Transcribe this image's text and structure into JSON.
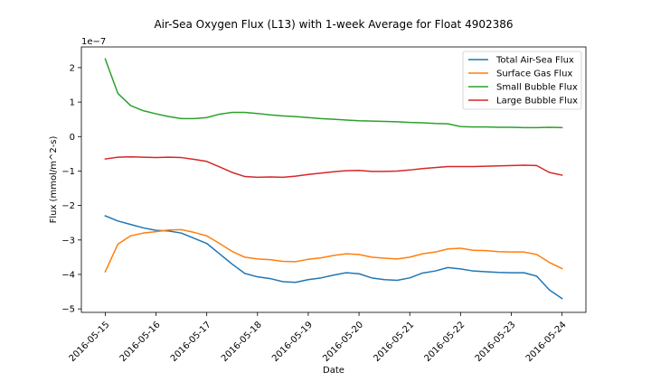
{
  "chart_data": {
    "type": "line",
    "title": "Air-Sea Oxygen Flux (L13) with 1-week Average for Float 4902386",
    "xlabel": "Date",
    "ylabel": "Flux (mmol/m^2-s)",
    "y_multiplier_label": "1e−7",
    "x_tick_labels": [
      "2016-05-15",
      "2016-05-16",
      "2016-05-17",
      "2016-05-18",
      "2016-05-19",
      "2016-05-20",
      "2016-05-21",
      "2016-05-22",
      "2016-05-23",
      "2016-05-24"
    ],
    "y_ticks": [
      -5,
      -4,
      -3,
      -2,
      -1,
      0,
      1,
      2
    ],
    "y_tick_labels": [
      "−5",
      "−4",
      "−3",
      "−2",
      "−1",
      "0",
      "1",
      "2"
    ],
    "xlim": [
      -0.47,
      9.47
    ],
    "ylim": [
      -5.1,
      2.6
    ],
    "legend_position": "upper right",
    "grid": false,
    "x": [
      0,
      0.25,
      0.5,
      0.75,
      1,
      1.25,
      1.5,
      1.75,
      2,
      2.25,
      2.5,
      2.75,
      3,
      3.25,
      3.5,
      3.75,
      4,
      4.25,
      4.5,
      4.75,
      5,
      5.25,
      5.5,
      5.75,
      6,
      6.25,
      6.5,
      6.75,
      7,
      7.25,
      7.5,
      7.75,
      8,
      8.25,
      8.5,
      8.75,
      9
    ],
    "series": [
      {
        "name": "Total Air-Sea Flux",
        "color": "#1f77b4",
        "values": [
          -2.3,
          -2.45,
          -2.55,
          -2.65,
          -2.72,
          -2.74,
          -2.8,
          -2.95,
          -3.1,
          -3.4,
          -3.7,
          -3.97,
          -4.07,
          -4.12,
          -4.21,
          -4.23,
          -4.15,
          -4.1,
          -4.02,
          -3.95,
          -3.98,
          -4.1,
          -4.15,
          -4.17,
          -4.1,
          -3.96,
          -3.9,
          -3.8,
          -3.84,
          -3.9,
          -3.92,
          -3.94,
          -3.95,
          -3.95,
          -4.05,
          -4.45,
          -4.7
        ]
      },
      {
        "name": "Surface Gas Flux",
        "color": "#ff7f0e",
        "values": [
          -3.92,
          -3.12,
          -2.88,
          -2.8,
          -2.76,
          -2.71,
          -2.7,
          -2.78,
          -2.88,
          -3.1,
          -3.33,
          -3.5,
          -3.55,
          -3.57,
          -3.62,
          -3.63,
          -3.56,
          -3.52,
          -3.45,
          -3.4,
          -3.42,
          -3.5,
          -3.53,
          -3.55,
          -3.5,
          -3.4,
          -3.35,
          -3.26,
          -3.24,
          -3.3,
          -3.31,
          -3.34,
          -3.35,
          -3.35,
          -3.42,
          -3.65,
          -3.83
        ]
      },
      {
        "name": "Small Bubble Flux",
        "color": "#2ca02c",
        "values": [
          2.25,
          1.25,
          0.9,
          0.75,
          0.66,
          0.58,
          0.52,
          0.52,
          0.55,
          0.65,
          0.7,
          0.7,
          0.67,
          0.63,
          0.6,
          0.58,
          0.55,
          0.52,
          0.5,
          0.48,
          0.46,
          0.45,
          0.44,
          0.43,
          0.41,
          0.4,
          0.38,
          0.37,
          0.29,
          0.28,
          0.28,
          0.27,
          0.27,
          0.26,
          0.26,
          0.27,
          0.26
        ]
      },
      {
        "name": "Large Bubble Flux",
        "color": "#d62728",
        "values": [
          -0.65,
          -0.6,
          -0.59,
          -0.6,
          -0.61,
          -0.6,
          -0.61,
          -0.66,
          -0.72,
          -0.88,
          -1.04,
          -1.16,
          -1.18,
          -1.17,
          -1.18,
          -1.15,
          -1.1,
          -1.06,
          -1.02,
          -0.99,
          -0.98,
          -1.01,
          -1.01,
          -1.0,
          -0.97,
          -0.93,
          -0.9,
          -0.87,
          -0.87,
          -0.87,
          -0.86,
          -0.85,
          -0.84,
          -0.83,
          -0.84,
          -1.04,
          -1.12
        ]
      }
    ]
  }
}
